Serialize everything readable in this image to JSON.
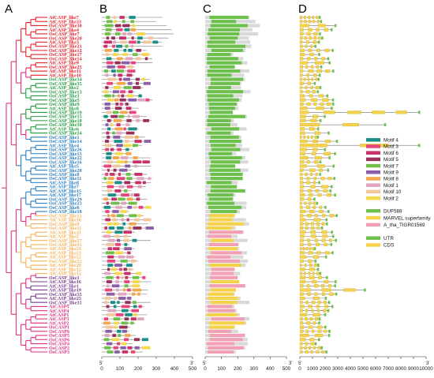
{
  "panel_letters": {
    "a": "A",
    "b": "B",
    "c": "C",
    "d": "D"
  },
  "clade_colors": {
    "red": "#e8222a",
    "green": "#229c3d",
    "blue": "#2a7fc3",
    "orange": "#f6b15a",
    "purple": "#7a3d8f",
    "pink": "#e0337f"
  },
  "genes": [
    {
      "name": "AtCASP_like7",
      "clade": "red"
    },
    {
      "name": "AtCASP_like33",
      "clade": "red"
    },
    {
      "name": "OsCASP_like30",
      "clade": "red"
    },
    {
      "name": "AtCASP_like4",
      "clade": "red"
    },
    {
      "name": "OsCASP_like7",
      "clade": "red"
    },
    {
      "name": "OsCASP_like20",
      "clade": "red"
    },
    {
      "name": "AtCASP_like3",
      "clade": "red"
    },
    {
      "name": "OsCASP_like21",
      "clade": "red"
    },
    {
      "name": "OsCASP_like12",
      "clade": "red"
    },
    {
      "name": "OsCASP_like17",
      "clade": "red"
    },
    {
      "name": "OsCASP_like14",
      "clade": "red"
    },
    {
      "name": "AtCASP_like9",
      "clade": "red"
    },
    {
      "name": "OsCASP_like25",
      "clade": "red"
    },
    {
      "name": "AtCASP_like11",
      "clade": "red"
    },
    {
      "name": "AtCASP_like10",
      "clade": "red"
    },
    {
      "name": "OsCASP_like34",
      "clade": "green"
    },
    {
      "name": "OsCASP_like35",
      "clade": "green"
    },
    {
      "name": "AtCASP_like2",
      "clade": "green"
    },
    {
      "name": "OsCASP_like13",
      "clade": "green"
    },
    {
      "name": "OsCASP_like3",
      "clade": "green"
    },
    {
      "name": "OsCASP_like5",
      "clade": "green"
    },
    {
      "name": "OsCASP_like9",
      "clade": "green"
    },
    {
      "name": "AtCASP_like8",
      "clade": "green"
    },
    {
      "name": "OsCASP_like19",
      "clade": "green"
    },
    {
      "name": "OsCASP_like15",
      "clade": "green"
    },
    {
      "name": "OsCASP_like10",
      "clade": "green"
    },
    {
      "name": "OsCASP_like30",
      "clade": "green"
    },
    {
      "name": "AtCASP_like6",
      "clade": "green"
    },
    {
      "name": "OsCASP_like24",
      "clade": "green"
    },
    {
      "name": "OsCASP_like1",
      "clade": "blue"
    },
    {
      "name": "OsCASP_like14",
      "clade": "blue"
    },
    {
      "name": "AtCASP_like4",
      "clade": "blue"
    },
    {
      "name": "OsCASP_like26",
      "clade": "blue"
    },
    {
      "name": "OsCASP_like13",
      "clade": "blue"
    },
    {
      "name": "OsCASP_like22",
      "clade": "blue"
    },
    {
      "name": "OsCASP_like16",
      "clade": "blue"
    },
    {
      "name": "AtCASP_like5",
      "clade": "blue"
    },
    {
      "name": "OsCASP_like28",
      "clade": "blue"
    },
    {
      "name": "OsCASP_like8",
      "clade": "blue"
    },
    {
      "name": "OsCASP_like11",
      "clade": "blue"
    },
    {
      "name": "AtCASP_like8",
      "clade": "blue"
    },
    {
      "name": "AtCASP_like7",
      "clade": "blue"
    },
    {
      "name": "AtCASP_like15",
      "clade": "blue"
    },
    {
      "name": "AtCASP_like17",
      "clade": "blue"
    },
    {
      "name": "OsCASP_like29",
      "clade": "blue"
    },
    {
      "name": "OsCASP_like23",
      "clade": "blue"
    },
    {
      "name": "OsCASP_like6",
      "clade": "blue"
    },
    {
      "name": "OsCASP_like18",
      "clade": "blue"
    },
    {
      "name": "OsCASP_like12",
      "clade": "orange"
    },
    {
      "name": "AtCASP_like10",
      "clade": "orange"
    },
    {
      "name": "OsCASP_like9",
      "clade": "orange"
    },
    {
      "name": "OsCASP_like11",
      "clade": "orange"
    },
    {
      "name": "AtCASP_like21",
      "clade": "orange"
    },
    {
      "name": "AtCASP_like2",
      "clade": "orange"
    },
    {
      "name": "OsCASP_like27",
      "clade": "orange"
    },
    {
      "name": "OsCASP_like31",
      "clade": "orange"
    },
    {
      "name": "AtCASP_like24",
      "clade": "orange"
    },
    {
      "name": "AtCASP_like23",
      "clade": "orange"
    },
    {
      "name": "AtCASP_like22",
      "clade": "orange"
    },
    {
      "name": "OsCASP_like32",
      "clade": "orange"
    },
    {
      "name": "AtCASP_like20",
      "clade": "orange"
    },
    {
      "name": "AtCASP_like13",
      "clade": "orange"
    },
    {
      "name": "AtCASP_like12",
      "clade": "orange"
    },
    {
      "name": "OsCASP_like1",
      "clade": "purple"
    },
    {
      "name": "AtCASP_like16",
      "clade": "purple"
    },
    {
      "name": "AtCASP_like1",
      "clade": "purple"
    },
    {
      "name": "AtCASP_like19",
      "clade": "purple"
    },
    {
      "name": "OsCASP_like35",
      "clade": "purple"
    },
    {
      "name": "AtCASP_like25",
      "clade": "purple"
    },
    {
      "name": "OsCASP_like31",
      "clade": "purple"
    },
    {
      "name": "AtCASP5",
      "clade": "pink"
    },
    {
      "name": "AtCASP4",
      "clade": "pink"
    },
    {
      "name": "AtCASP1",
      "clade": "pink"
    },
    {
      "name": "AtCASP3",
      "clade": "pink"
    },
    {
      "name": "AtCASP2",
      "clade": "pink"
    },
    {
      "name": "OsCASP1",
      "clade": "pink"
    },
    {
      "name": "OsCASP6",
      "clade": "pink"
    },
    {
      "name": "OsCASP5",
      "clade": "pink"
    },
    {
      "name": "OsCASP6",
      "clade": "pink"
    },
    {
      "name": "OsCASP4",
      "clade": "pink"
    },
    {
      "name": "OsCASP2",
      "clade": "pink"
    },
    {
      "name": "OsCASP3",
      "clade": "pink"
    }
  ],
  "axis_b": {
    "start": "5'",
    "end": "3'",
    "ticks": [
      "0",
      "100",
      "200",
      "300",
      "400",
      "500"
    ]
  },
  "axis_c": {
    "start": "5'",
    "end": "3'",
    "ticks": [
      "0",
      "100",
      "200",
      "300",
      "400",
      "500"
    ]
  },
  "axis_d": {
    "start": "5'",
    "end": "3'",
    "ticks": [
      "0",
      "1000",
      "2000",
      "3000",
      "4000",
      "5000",
      "6000",
      "7000",
      "8000",
      "9000",
      "10000"
    ]
  },
  "legend": {
    "motifs": [
      {
        "label": "Motif 4",
        "color": "#1a8f8a"
      },
      {
        "label": "Motif 3",
        "color": "#e8457a"
      },
      {
        "label": "Motif 6",
        "color": "#c9306a"
      },
      {
        "label": "Motif 5",
        "color": "#9a2f5a"
      },
      {
        "label": "Motif 7",
        "color": "#6fbf4a"
      },
      {
        "label": "Motif 9",
        "color": "#8b5fa8"
      },
      {
        "label": "Motif 8",
        "color": "#f4a74a"
      },
      {
        "label": "Motif 1",
        "color": "#e3a6c0"
      },
      {
        "label": "Motif 10",
        "color": "#f2c79c"
      },
      {
        "label": "Motif 2",
        "color": "#f6d94a"
      }
    ],
    "domains": [
      {
        "label": "DUF588",
        "color": "#6dc04b"
      },
      {
        "label": "MARVEL superfamily",
        "color": "#f6d24a"
      },
      {
        "label": "A_tha_TIGR01569",
        "color": "#f2a0b4"
      }
    ],
    "structure": [
      {
        "label": "UTR",
        "color": "#6dc04b"
      },
      {
        "label": "CDS",
        "color": "#f6d24a"
      }
    ]
  }
}
